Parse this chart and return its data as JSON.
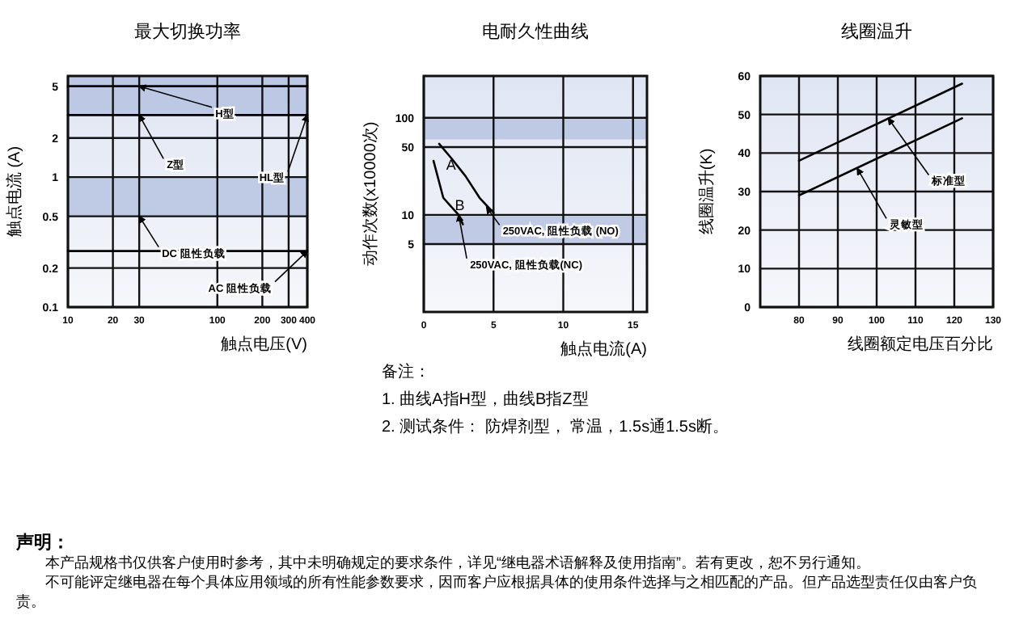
{
  "chart_data": [
    {
      "type": "line",
      "title": "最大切换功率",
      "xlabel": "触点电压(V)",
      "ylabel": "触点电流 (A)",
      "log": "xy",
      "xlim": [
        10,
        400
      ],
      "ylim": [
        0.1,
        6
      ],
      "xticks": [
        10,
        20,
        30,
        100,
        200,
        300,
        400
      ],
      "yticks": [
        0.1,
        0.2,
        0.5,
        1,
        2,
        5
      ],
      "grid": true,
      "series": [
        {
          "color": "#000000",
          "x": [
            10,
            400
          ],
          "values": [
            5,
            5
          ]
        },
        {
          "color": "#000000",
          "x": [
            10,
            400
          ],
          "values": [
            3,
            3
          ]
        },
        {
          "color": "#000000",
          "x": [
            10,
            400
          ],
          "values": [
            0.27,
            0.27
          ]
        }
      ],
      "bands": [
        {
          "axis": "y",
          "from": 3,
          "to": 6,
          "color": "#b4c0e0"
        },
        {
          "axis": "y",
          "from": 0.5,
          "to": 1,
          "color": "#b4c0e0"
        }
      ],
      "annotations": [
        {
          "text": "H型",
          "x": 30,
          "y": 5
        },
        {
          "text": "Z型",
          "x": 30,
          "y": 3
        },
        {
          "text": "HL型",
          "x": 400,
          "y": 3
        },
        {
          "text": "DC 阻性负载",
          "x": 30,
          "y": 0.5
        },
        {
          "text": "AC 阻性负载",
          "x": 400,
          "y": 0.27
        }
      ]
    },
    {
      "type": "line",
      "title": "电耐久性曲线",
      "xlabel": "触点电流(A)",
      "ylabel": "动作次数(x10000次)",
      "log": "y",
      "xlim": [
        0,
        16
      ],
      "ylim": [
        1,
        270
      ],
      "xticks": [
        0,
        5,
        10,
        15
      ],
      "yticks": [
        5,
        10,
        50,
        100
      ],
      "grid": true,
      "series": [
        {
          "name": "A",
          "color": "#000000",
          "x": [
            1.1,
            2,
            3,
            4,
            5
          ],
          "values": [
            54,
            38,
            25,
            15,
            10.5
          ]
        },
        {
          "name": "B",
          "color": "#000000",
          "x": [
            0.7,
            1.4,
            2,
            2.5,
            2.8
          ],
          "values": [
            36,
            15,
            12,
            10,
            8
          ]
        }
      ],
      "bands": [
        {
          "axis": "y",
          "from": 60,
          "to": 100,
          "color": "#b4c0e0"
        },
        {
          "axis": "y",
          "from": 5,
          "to": 10,
          "color": "#b4c0e0"
        }
      ],
      "annotations": [
        {
          "text": "250VAC, 阻性负载 (NO)",
          "x": 4.5,
          "y": 12
        },
        {
          "text": "250VAC, 阻性负载(NC)",
          "x": 2.5,
          "y": 10
        },
        "备注：",
        "1. 曲线A指H型，曲线B指Z型",
        "2. 测试条件： 防焊剂型， 常温，1.5s通1.5s断。"
      ]
    },
    {
      "type": "line",
      "title": "线圈温升",
      "xlabel": "线圈额定电压百分比",
      "ylabel": "线圈温升(K)",
      "xlim": [
        70,
        130
      ],
      "ylim": [
        0,
        60
      ],
      "xticks": [
        80,
        90,
        100,
        110,
        120,
        130
      ],
      "yticks": [
        0,
        10,
        20,
        30,
        40,
        50,
        60
      ],
      "grid": true,
      "series": [
        {
          "color": "#000000",
          "x": [
            80,
            122
          ],
          "values": [
            38,
            58
          ]
        },
        {
          "color": "#000000",
          "x": [
            80,
            122
          ],
          "values": [
            29,
            49
          ]
        }
      ],
      "annotations": [
        {
          "text": "标准型",
          "x": 103,
          "y": 49
        },
        {
          "text": "灵敏型",
          "x": 95,
          "y": 36
        }
      ]
    },
    {
      "type": "other",
      "title": "声明：",
      "annotations": [
        "本产品规格书仅供客户使用时参考，其中未明确规定的要求条件，详见“继电器术语解释及使用指南”。若有更改，恕不另行通知。",
        "不可能评定继电器在每个具体应用领域的所有性能参数要求，因而客户应根据具体的使用条件选择与之相匹配的产品。但产品选型责任仅由客户负责。"
      ]
    }
  ]
}
